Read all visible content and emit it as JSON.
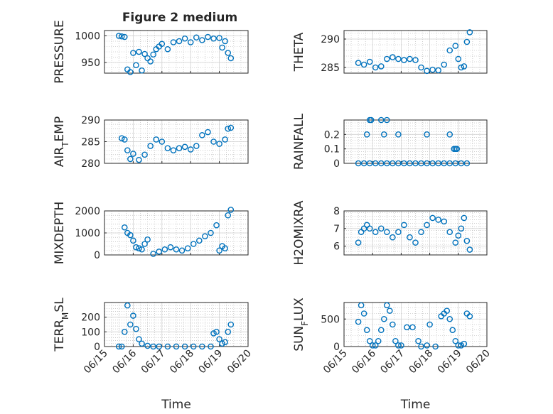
{
  "figure": {
    "title": "Figure 2 medium"
  },
  "colors": {
    "marker": "#0072BD",
    "axis": "#262626",
    "grid": "#b0b0b0",
    "background": "#ffffff"
  },
  "chart_data": [
    {
      "id": "pressure",
      "type": "scatter",
      "title": "Figure 2 medium",
      "ylabel": "PRESSURE",
      "ylabel_sub": null,
      "xlabel": "",
      "ylim": [
        930,
        1010
      ],
      "yticks": [
        950,
        1000
      ],
      "grid": true,
      "x": [
        "06/15 12:00",
        "06/15 14:24",
        "06/15 16:48",
        "06/15 19:12",
        "06/15 21:36",
        "06/16 00:00",
        "06/16 02:24",
        "06/16 04:48",
        "06/16 07:12",
        "06/16 09:36",
        "06/16 12:00",
        "06/16 14:24",
        "06/16 16:48",
        "06/16 19:12",
        "06/16 21:36",
        "06/17 00:00",
        "06/17 04:48",
        "06/17 09:36",
        "06/17 14:24",
        "06/17 19:12",
        "06/18 00:00",
        "06/18 04:48",
        "06/18 09:36",
        "06/18 14:24",
        "06/18 19:12",
        "06/19 00:00",
        "06/19 02:24",
        "06/19 04:48",
        "06/19 07:12",
        "06/19 09:36"
      ],
      "y": [
        1000,
        999,
        998,
        937,
        932,
        968,
        945,
        970,
        935,
        966,
        958,
        952,
        965,
        975,
        980,
        985,
        975,
        988,
        990,
        995,
        988,
        997,
        992,
        998,
        995,
        996,
        978,
        990,
        968,
        958
      ]
    },
    {
      "id": "theta",
      "type": "scatter",
      "ylabel": "THETA",
      "ylabel_sub": null,
      "xlabel": "",
      "ylim": [
        284,
        291.5
      ],
      "yticks": [
        285,
        290
      ],
      "grid": true,
      "x": [
        "06/15 12:00",
        "06/15 16:48",
        "06/15 21:36",
        "06/16 02:24",
        "06/16 07:12",
        "06/16 12:00",
        "06/16 16:48",
        "06/16 21:36",
        "06/17 02:24",
        "06/17 07:12",
        "06/17 12:00",
        "06/17 16:48",
        "06/17 21:36",
        "06/18 02:24",
        "06/18 07:12",
        "06/18 12:00",
        "06/18 16:48",
        "06/18 21:36",
        "06/19 00:00",
        "06/19 02:24",
        "06/19 04:48",
        "06/19 07:12",
        "06/19 09:36"
      ],
      "y": [
        285.8,
        285.5,
        286.0,
        285.0,
        285.2,
        286.5,
        286.8,
        286.5,
        286.3,
        286.5,
        286.3,
        285.0,
        284.4,
        284.6,
        284.5,
        285.5,
        288.0,
        288.8,
        286.5,
        285.0,
        285.2,
        289.5,
        291.2
      ]
    },
    {
      "id": "air_temp",
      "type": "scatter",
      "ylabel": "AIR",
      "ylabel_sub": "T",
      "ylabel_tail": "EMP",
      "xlabel": "",
      "ylim": [
        280,
        290
      ],
      "yticks": [
        280,
        285,
        290
      ],
      "grid": true,
      "x": [
        "06/15 14:24",
        "06/15 16:48",
        "06/15 19:12",
        "06/15 21:36",
        "06/16 00:00",
        "06/16 04:48",
        "06/16 09:36",
        "06/16 14:24",
        "06/16 19:12",
        "06/17 00:00",
        "06/17 04:48",
        "06/17 09:36",
        "06/17 14:24",
        "06/17 19:12",
        "06/18 00:00",
        "06/18 04:48",
        "06/18 09:36",
        "06/18 14:24",
        "06/18 19:12",
        "06/19 00:00",
        "06/19 04:48",
        "06/19 07:12",
        "06/19 09:36"
      ],
      "y": [
        285.8,
        285.5,
        283.0,
        281.0,
        282.2,
        280.8,
        282.0,
        284.0,
        285.5,
        285.0,
        283.5,
        283.0,
        283.5,
        283.8,
        283.2,
        284.0,
        286.5,
        287.2,
        285.0,
        284.5,
        285.5,
        288.0,
        288.2
      ]
    },
    {
      "id": "rainfall",
      "type": "scatter",
      "ylabel": "RAINFALL",
      "ylabel_sub": null,
      "xlabel": "",
      "ylim": [
        0,
        0.3
      ],
      "yticks": [
        0,
        0.1,
        0.2
      ],
      "grid": true,
      "x": [
        "06/15 12:00",
        "06/15 16:48",
        "06/15 21:36",
        "06/16 02:24",
        "06/16 07:12",
        "06/16 12:00",
        "06/16 16:48",
        "06/16 21:36",
        "06/17 02:24",
        "06/17 07:12",
        "06/17 12:00",
        "06/17 16:48",
        "06/17 21:36",
        "06/18 02:24",
        "06/18 07:12",
        "06/18 12:00",
        "06/18 16:48",
        "06/18 21:36",
        "06/19 02:24",
        "06/19 07:12",
        "06/15 19:12",
        "06/15 21:36",
        "06/15 22:48",
        "06/16 07:12",
        "06/16 09:36",
        "06/16 12:00",
        "06/16 21:36",
        "06/17 21:36",
        "06/18 16:48",
        "06/18 20:24",
        "06/18 21:36",
        "06/18 22:48"
      ],
      "y": [
        0,
        0,
        0,
        0,
        0,
        0,
        0,
        0,
        0,
        0,
        0,
        0,
        0,
        0,
        0,
        0,
        0,
        0,
        0,
        0,
        0.2,
        0.3,
        0.3,
        0.3,
        0.2,
        0.3,
        0.2,
        0.2,
        0.2,
        0.1,
        0.1,
        0.1
      ]
    },
    {
      "id": "mixdepth",
      "type": "scatter",
      "ylabel": "MIXDEPTH",
      "ylabel_sub": null,
      "xlabel": "",
      "ylim": [
        0,
        2000
      ],
      "yticks": [
        0,
        1000,
        2000
      ],
      "grid": true,
      "x": [
        "06/15 16:48",
        "06/15 19:12",
        "06/15 21:36",
        "06/16 00:00",
        "06/16 02:24",
        "06/16 04:48",
        "06/16 07:12",
        "06/16 09:36",
        "06/16 12:00",
        "06/16 16:48",
        "06/16 21:36",
        "06/17 02:24",
        "06/17 07:12",
        "06/17 12:00",
        "06/17 16:48",
        "06/17 21:36",
        "06/18 02:24",
        "06/18 07:12",
        "06/18 12:00",
        "06/18 16:48",
        "06/18 21:36",
        "06/19 00:00",
        "06/19 02:24",
        "06/19 04:48",
        "06/19 07:12",
        "06/19 09:36"
      ],
      "y": [
        1250,
        1000,
        900,
        650,
        350,
        300,
        250,
        500,
        700,
        50,
        150,
        250,
        350,
        250,
        200,
        300,
        500,
        650,
        850,
        1000,
        1350,
        200,
        400,
        300,
        1800,
        2050
      ]
    },
    {
      "id": "h2omixra",
      "type": "scatter",
      "ylabel": "H2OMIXRA",
      "ylabel_sub": null,
      "xlabel": "",
      "ylim": [
        5.5,
        8
      ],
      "yticks": [
        6,
        7,
        8
      ],
      "grid": true,
      "x": [
        "06/15 12:00",
        "06/15 14:24",
        "06/15 16:48",
        "06/15 19:12",
        "06/15 21:36",
        "06/16 02:24",
        "06/16 07:12",
        "06/16 12:00",
        "06/16 16:48",
        "06/16 21:36",
        "06/17 02:24",
        "06/17 07:12",
        "06/17 12:00",
        "06/17 16:48",
        "06/17 21:36",
        "06/18 02:24",
        "06/18 07:12",
        "06/18 12:00",
        "06/18 16:48",
        "06/18 21:36",
        "06/19 00:00",
        "06/19 02:24",
        "06/19 04:48",
        "06/19 07:12",
        "06/19 09:36"
      ],
      "y": [
        6.2,
        6.8,
        7.0,
        7.2,
        7.0,
        6.8,
        7.0,
        6.8,
        6.5,
        6.8,
        7.2,
        6.5,
        6.2,
        6.8,
        7.2,
        7.6,
        7.5,
        7.4,
        6.8,
        6.2,
        6.6,
        7.0,
        7.6,
        6.3,
        5.8
      ]
    },
    {
      "id": "terr_msl",
      "type": "scatter",
      "ylabel": "TERR",
      "ylabel_sub": "M",
      "ylabel_tail": "SL",
      "xlabel": "Time",
      "ylim": [
        0,
        300
      ],
      "yticks": [
        0,
        100,
        200
      ],
      "grid": true,
      "xlim": [
        "06/15",
        "06/20"
      ],
      "xticks": [
        "06/15",
        "06/16",
        "06/17",
        "06/18",
        "06/19",
        "06/20"
      ],
      "x": [
        "06/15 12:00",
        "06/15 14:24",
        "06/15 16:48",
        "06/15 19:12",
        "06/15 21:36",
        "06/16 00:00",
        "06/16 02:24",
        "06/16 04:48",
        "06/16 07:12",
        "06/16 12:00",
        "06/16 16:48",
        "06/16 21:36",
        "06/17 04:48",
        "06/17 12:00",
        "06/17 19:12",
        "06/18 02:24",
        "06/18 09:36",
        "06/18 16:48",
        "06/18 19:12",
        "06/18 21:36",
        "06/19 00:00",
        "06/19 02:24",
        "06/19 04:48",
        "06/19 07:12",
        "06/19 09:36"
      ],
      "y": [
        0,
        0,
        100,
        280,
        150,
        210,
        120,
        50,
        20,
        5,
        0,
        0,
        0,
        0,
        0,
        0,
        0,
        0,
        90,
        100,
        50,
        20,
        30,
        100,
        150
      ]
    },
    {
      "id": "sun_flux",
      "type": "scatter",
      "ylabel": "SUN",
      "ylabel_sub": "F",
      "ylabel_tail": "LUX",
      "xlabel": "Time",
      "ylim": [
        0,
        800
      ],
      "yticks": [
        0,
        500
      ],
      "grid": true,
      "xlim": [
        "06/15",
        "06/20"
      ],
      "xticks": [
        "06/15",
        "06/16",
        "06/17",
        "06/18",
        "06/19",
        "06/20"
      ],
      "x": [
        "06/15 12:00",
        "06/15 14:24",
        "06/15 16:48",
        "06/15 19:12",
        "06/15 21:36",
        "06/16 00:00",
        "06/16 02:24",
        "06/16 04:48",
        "06/16 07:12",
        "06/16 09:36",
        "06/16 12:00",
        "06/16 14:24",
        "06/16 16:48",
        "06/16 19:12",
        "06/16 21:36",
        "06/17 00:00",
        "06/17 04:48",
        "06/17 09:36",
        "06/17 14:24",
        "06/17 16:48",
        "06/17 21:36",
        "06/18 00:00",
        "06/18 04:48",
        "06/18 09:36",
        "06/18 12:00",
        "06/18 14:24",
        "06/18 16:48",
        "06/18 19:12",
        "06/18 21:36",
        "06/19 00:00",
        "06/19 02:24",
        "06/19 04:48",
        "06/19 07:12",
        "06/19 09:36"
      ],
      "y": [
        450,
        750,
        600,
        300,
        100,
        20,
        20,
        100,
        300,
        500,
        750,
        650,
        400,
        100,
        20,
        20,
        350,
        350,
        100,
        0,
        20,
        400,
        0,
        550,
        600,
        650,
        500,
        300,
        100,
        20,
        20,
        50,
        600,
        550
      ]
    }
  ]
}
